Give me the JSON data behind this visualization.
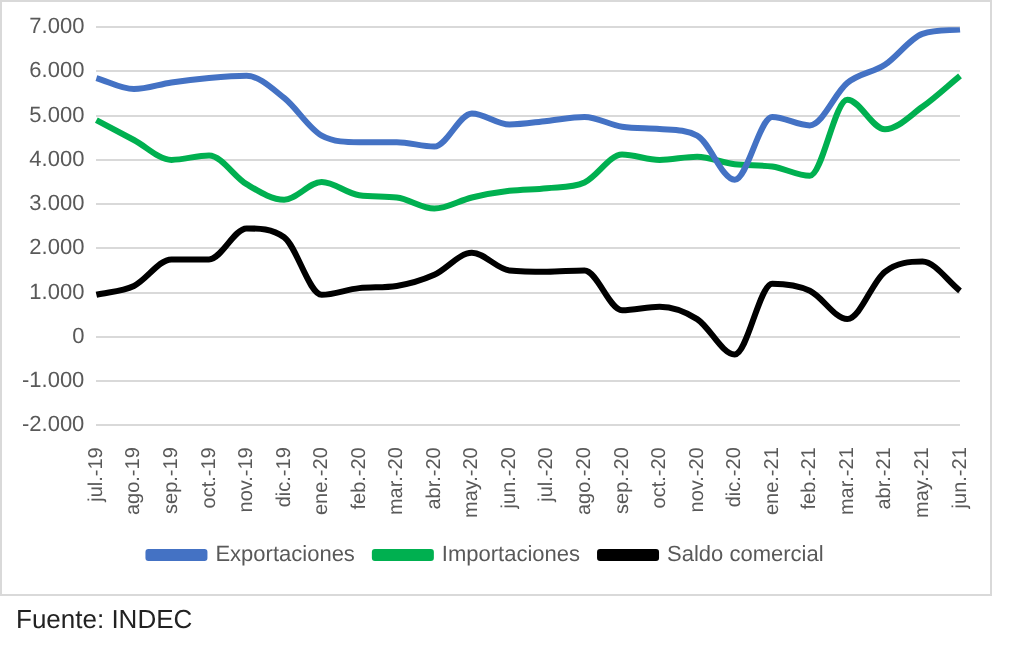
{
  "chart_data": {
    "type": "line",
    "categories": [
      "jul.-19",
      "ago.-19",
      "sep.-19",
      "oct.-19",
      "nov.-19",
      "dic.-19",
      "ene.-20",
      "feb.-20",
      "mar.-20",
      "abr.-20",
      "may.-20",
      "jun.-20",
      "jul.-20",
      "ago.-20",
      "sep.-20",
      "oct.-20",
      "nov.-20",
      "dic.-20",
      "ene.-21",
      "feb.-21",
      "mar.-21",
      "abr.-21",
      "may.-21",
      "jun.-21"
    ],
    "series": [
      {
        "name": "Exportaciones",
        "color": "#4472c4",
        "values": [
          5850,
          5600,
          5750,
          5850,
          5900,
          5400,
          4550,
          4400,
          4400,
          4300,
          5050,
          4800,
          4880,
          4970,
          4750,
          4700,
          4550,
          3550,
          4970,
          4780,
          5740,
          6150,
          6850,
          6950
        ]
      },
      {
        "name": "Importaciones",
        "color": "#00b050",
        "values": [
          4900,
          4450,
          4000,
          4100,
          3450,
          3100,
          3500,
          3200,
          3150,
          2900,
          3150,
          3300,
          3360,
          3490,
          4120,
          4000,
          4070,
          3900,
          3850,
          3640,
          5360,
          4690,
          5200,
          5900
        ]
      },
      {
        "name": "Saldo comercial",
        "color": "#000000",
        "values": [
          950,
          1150,
          1750,
          1750,
          2450,
          2250,
          950,
          1100,
          1150,
          1400,
          1900,
          1500,
          1470,
          1500,
          600,
          680,
          400,
          -400,
          1200,
          1040,
          400,
          1470,
          1700,
          1040
        ]
      }
    ],
    "ylim": [
      -2000,
      7000
    ],
    "yticks": [
      {
        "value": -2000,
        "label": "-2.000"
      },
      {
        "value": -1000,
        "label": "-1.000"
      },
      {
        "value": 0,
        "label": "0"
      },
      {
        "value": 1000,
        "label": "1.000"
      },
      {
        "value": 2000,
        "label": "2.000"
      },
      {
        "value": 3000,
        "label": "3.000"
      },
      {
        "value": 4000,
        "label": "4.000"
      },
      {
        "value": 5000,
        "label": "5.000"
      },
      {
        "value": 6000,
        "label": "6.000"
      },
      {
        "value": 7000,
        "label": "7.000"
      }
    ],
    "grid": "y",
    "legend": "bottom",
    "marker": "none",
    "line_style": "solid",
    "annotations": [
      "Fuente: INDEC"
    ]
  }
}
